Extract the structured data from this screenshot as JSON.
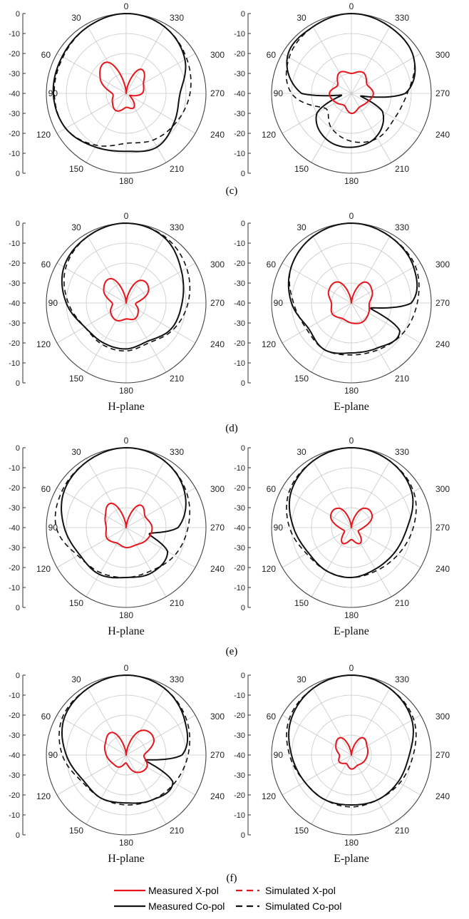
{
  "figure": {
    "row_labels": [
      "(c)",
      "(d)",
      "(e)",
      "(f)"
    ],
    "plane_labels": {
      "h": "H-plane",
      "e": "E-plane"
    },
    "legend": [
      {
        "label": "Measured X-pol",
        "color": "#e8141c",
        "dash": false
      },
      {
        "label": "Simulated X-pol",
        "color": "#e8141c",
        "dash": true
      },
      {
        "label": "Measured Co-pol",
        "color": "#111111",
        "dash": false
      },
      {
        "label": "Simulated Co-pol",
        "color": "#111111",
        "dash": true
      }
    ]
  },
  "chart_data": [
    {
      "type": "polar",
      "panel": "c-left",
      "plane_label": "",
      "r_range": [
        -40,
        0
      ],
      "r_ticks": [
        0,
        -10,
        -20,
        -30,
        -40,
        -30,
        -20,
        -10,
        0
      ],
      "angle_ticks": [
        0,
        30,
        60,
        90,
        120,
        150,
        180,
        210,
        240,
        270,
        300,
        330
      ],
      "series": [
        {
          "role": "measured-co",
          "angles": [
            0,
            30,
            60,
            90,
            120,
            150,
            180,
            210,
            240,
            270,
            300,
            330
          ],
          "values": [
            0,
            -1.5,
            -3,
            -3.5,
            -5,
            -9,
            -11,
            -9,
            -12,
            -13,
            -6,
            -1.5
          ]
        },
        {
          "role": "simulated-co",
          "angles": [
            0,
            30,
            60,
            90,
            120,
            150,
            180,
            210,
            240,
            270,
            300,
            330
          ],
          "values": [
            0,
            -1.5,
            -3.5,
            -4,
            -5,
            -10,
            -15,
            -13,
            -11,
            -8,
            -5,
            -1.5
          ]
        },
        {
          "role": "measured-x",
          "angles": [
            0,
            30,
            60,
            90,
            120,
            150,
            180,
            210,
            240,
            270,
            300,
            330
          ],
          "values": [
            -40,
            -22,
            -25,
            -33,
            -32,
            -30,
            -33,
            -32,
            -38,
            -32,
            -30,
            -26
          ]
        }
      ]
    },
    {
      "type": "polar",
      "panel": "c-right",
      "plane_label": "",
      "r_range": [
        -40,
        0
      ],
      "r_ticks": [
        0,
        -10,
        -20,
        -30,
        -40,
        -30,
        -20,
        -10,
        0
      ],
      "angle_ticks": [
        0,
        30,
        60,
        90,
        120,
        150,
        180,
        210,
        240,
        270,
        300,
        330
      ],
      "series": [
        {
          "role": "measured-co",
          "angles": [
            0,
            30,
            60,
            90,
            100,
            120,
            150,
            180,
            210,
            240,
            255,
            270,
            300,
            330
          ],
          "values": [
            0,
            -1.5,
            -3,
            -15,
            -35,
            -20,
            -14,
            -13,
            -15,
            -22,
            -35,
            -13,
            -4,
            -1.5
          ]
        },
        {
          "role": "simulated-co",
          "angles": [
            0,
            30,
            60,
            90,
            120,
            150,
            180,
            210,
            240,
            270,
            300,
            330
          ],
          "values": [
            0,
            -1.5,
            -4,
            -10,
            -25,
            -20,
            -16,
            -14,
            -15,
            -12,
            -4,
            -1.5
          ]
        },
        {
          "role": "measured-x",
          "angles": [
            0,
            30,
            60,
            90,
            120,
            150,
            180,
            210,
            240,
            270,
            300,
            330
          ],
          "values": [
            -30,
            -28,
            -32,
            -29,
            -31,
            -33,
            -30,
            -32,
            -31,
            -29,
            -31,
            -28
          ]
        }
      ]
    },
    {
      "type": "polar",
      "panel": "d-left",
      "plane_label": "H-plane",
      "r_range": [
        -40,
        0
      ],
      "r_ticks": [
        0,
        -10,
        -20,
        -30,
        -40,
        -30,
        -20,
        -10,
        0
      ],
      "angle_ticks": [
        0,
        30,
        60,
        90,
        120,
        150,
        180,
        210,
        240,
        270,
        300,
        330
      ],
      "series": [
        {
          "role": "measured-co",
          "angles": [
            0,
            30,
            60,
            90,
            120,
            150,
            180,
            210,
            240,
            270,
            300,
            330
          ],
          "values": [
            0,
            -1.5,
            -4,
            -10,
            -16,
            -17,
            -17,
            -18,
            -14,
            -12,
            -8,
            -2
          ]
        },
        {
          "role": "simulated-co",
          "angles": [
            0,
            30,
            60,
            90,
            120,
            150,
            180,
            210,
            240,
            270,
            300,
            330
          ],
          "values": [
            0,
            -1.5,
            -5,
            -11,
            -16,
            -16,
            -16,
            -17,
            -13,
            -9,
            -5,
            -1.5
          ]
        },
        {
          "role": "measured-x",
          "angles": [
            0,
            30,
            60,
            90,
            120,
            150,
            180,
            210,
            240,
            270,
            300,
            330
          ],
          "values": [
            -40,
            -26,
            -27,
            -33,
            -31,
            -30,
            -32,
            -31,
            -33,
            -35,
            -27,
            -27
          ]
        }
      ]
    },
    {
      "type": "polar",
      "panel": "d-right",
      "plane_label": "E-plane",
      "r_range": [
        -40,
        0
      ],
      "r_ticks": [
        0,
        -10,
        -20,
        -30,
        -40,
        -30,
        -20,
        -10,
        0
      ],
      "angle_ticks": [
        0,
        30,
        60,
        90,
        120,
        150,
        180,
        210,
        240,
        270,
        300,
        330
      ],
      "series": [
        {
          "role": "measured-co",
          "angles": [
            0,
            30,
            60,
            90,
            120,
            150,
            180,
            210,
            240,
            255,
            270,
            300,
            330
          ],
          "values": [
            0,
            -1.5,
            -5,
            -10,
            -15,
            -13,
            -15,
            -14,
            -12,
            -30,
            -10,
            -4,
            -1.5
          ]
        },
        {
          "role": "simulated-co",
          "angles": [
            0,
            30,
            60,
            90,
            120,
            150,
            180,
            210,
            240,
            270,
            300,
            330
          ],
          "values": [
            0,
            -1.5,
            -5,
            -11,
            -14,
            -13,
            -14,
            -13,
            -10,
            -7,
            -3,
            -1.5
          ]
        },
        {
          "role": "measured-x",
          "angles": [
            0,
            30,
            60,
            90,
            120,
            150,
            180,
            210,
            240,
            270,
            300,
            330
          ],
          "values": [
            -40,
            -28,
            -27,
            -30,
            -29,
            -31,
            -30,
            -29,
            -30,
            -31,
            -28,
            -28
          ]
        }
      ]
    },
    {
      "type": "polar",
      "panel": "e-left",
      "plane_label": "H-plane",
      "r_range": [
        -40,
        0
      ],
      "r_ticks": [
        0,
        -10,
        -20,
        -30,
        -40,
        -30,
        -20,
        -10,
        0
      ],
      "angle_ticks": [
        0,
        30,
        60,
        90,
        120,
        150,
        180,
        210,
        240,
        270,
        300,
        330
      ],
      "series": [
        {
          "role": "measured-co",
          "angles": [
            0,
            30,
            60,
            90,
            120,
            150,
            180,
            210,
            240,
            255,
            270,
            300,
            330
          ],
          "values": [
            0,
            -1.5,
            -4,
            -9,
            -13,
            -13,
            -15,
            -14,
            -16,
            -28,
            -14,
            -6,
            -1.5
          ]
        },
        {
          "role": "simulated-co",
          "angles": [
            0,
            30,
            60,
            90,
            120,
            150,
            180,
            210,
            240,
            270,
            300,
            330
          ],
          "values": [
            0,
            -1.5,
            -3,
            -5,
            -12,
            -14,
            -15,
            -15,
            -12,
            -9,
            -5,
            -1.5
          ]
        },
        {
          "role": "measured-x",
          "angles": [
            0,
            30,
            60,
            90,
            120,
            150,
            180,
            210,
            240,
            270,
            300,
            330
          ],
          "values": [
            -40,
            -26,
            -28,
            -30,
            -29,
            -31,
            -30,
            -30,
            -28,
            -27,
            -29,
            -27
          ]
        }
      ]
    },
    {
      "type": "polar",
      "panel": "e-right",
      "plane_label": "E-plane",
      "r_range": [
        -40,
        0
      ],
      "r_ticks": [
        0,
        -10,
        -20,
        -30,
        -40,
        -30,
        -20,
        -10,
        0
      ],
      "angle_ticks": [
        0,
        30,
        60,
        90,
        120,
        150,
        180,
        210,
        240,
        270,
        300,
        330
      ],
      "series": [
        {
          "role": "measured-co",
          "angles": [
            0,
            30,
            60,
            90,
            120,
            150,
            180,
            210,
            240,
            270,
            300,
            330
          ],
          "values": [
            0,
            -1.5,
            -5,
            -11,
            -15,
            -15,
            -15,
            -16,
            -15,
            -12,
            -5,
            -1.5
          ]
        },
        {
          "role": "simulated-co",
          "angles": [
            0,
            30,
            60,
            90,
            120,
            150,
            180,
            210,
            240,
            270,
            300,
            330
          ],
          "values": [
            0,
            -1.5,
            -4,
            -9,
            -14,
            -15,
            -15,
            -15,
            -13,
            -9,
            -4,
            -1.5
          ]
        },
        {
          "role": "measured-x",
          "angles": [
            0,
            30,
            60,
            90,
            120,
            150,
            180,
            210,
            240,
            270,
            300,
            330
          ],
          "values": [
            -40,
            -29,
            -28,
            -34,
            -36,
            -31,
            -34,
            -31,
            -36,
            -34,
            -28,
            -29
          ]
        }
      ]
    },
    {
      "type": "polar",
      "panel": "f-left",
      "plane_label": "H-plane",
      "r_range": [
        -40,
        0
      ],
      "r_ticks": [
        0,
        -10,
        -20,
        -30,
        -40,
        -30,
        -20,
        -10,
        0
      ],
      "angle_ticks": [
        0,
        30,
        60,
        90,
        120,
        150,
        180,
        210,
        240,
        270,
        300,
        330
      ],
      "series": [
        {
          "role": "measured-co",
          "angles": [
            0,
            30,
            60,
            90,
            120,
            150,
            180,
            210,
            240,
            255,
            270,
            300,
            330
          ],
          "values": [
            0,
            -1.5,
            -4,
            -10,
            -15,
            -15,
            -16,
            -14,
            -13,
            -30,
            -12,
            -6,
            -1.5
          ]
        },
        {
          "role": "simulated-co",
          "angles": [
            0,
            30,
            60,
            90,
            120,
            150,
            180,
            210,
            240,
            270,
            300,
            330
          ],
          "values": [
            0,
            -1.5,
            -3,
            -8,
            -14,
            -15,
            -15,
            -14,
            -12,
            -9,
            -5,
            -1.5
          ]
        },
        {
          "role": "measured-x",
          "angles": [
            0,
            30,
            60,
            90,
            120,
            150,
            180,
            210,
            240,
            270,
            300,
            330
          ],
          "values": [
            -40,
            -27,
            -28,
            -30,
            -32,
            -33,
            -36,
            -30,
            -28,
            -31,
            -24,
            -26
          ]
        }
      ]
    },
    {
      "type": "polar",
      "panel": "f-right",
      "plane_label": "E-plane",
      "r_range": [
        -40,
        0
      ],
      "r_ticks": [
        0,
        -10,
        -20,
        -30,
        -40,
        -30,
        -20,
        -10,
        0
      ],
      "angle_ticks": [
        0,
        30,
        60,
        90,
        120,
        150,
        180,
        210,
        240,
        270,
        300,
        330
      ],
      "series": [
        {
          "role": "measured-co",
          "angles": [
            0,
            30,
            60,
            90,
            120,
            150,
            180,
            210,
            240,
            270,
            300,
            330
          ],
          "values": [
            0,
            -1.5,
            -5,
            -10,
            -13,
            -14,
            -15,
            -14,
            -13,
            -11,
            -5,
            -1.5
          ]
        },
        {
          "role": "simulated-co",
          "angles": [
            0,
            30,
            60,
            90,
            120,
            150,
            180,
            210,
            240,
            270,
            300,
            330
          ],
          "values": [
            0,
            -1.5,
            -4,
            -9,
            -13,
            -14,
            -14,
            -14,
            -12,
            -9,
            -4,
            -1.5
          ]
        },
        {
          "role": "measured-x",
          "angles": [
            0,
            30,
            60,
            90,
            120,
            150,
            180,
            210,
            240,
            270,
            300,
            330
          ],
          "values": [
            -40,
            -30,
            -31,
            -34,
            -33,
            -35,
            -33,
            -34,
            -33,
            -32,
            -31,
            -30
          ]
        }
      ]
    }
  ]
}
